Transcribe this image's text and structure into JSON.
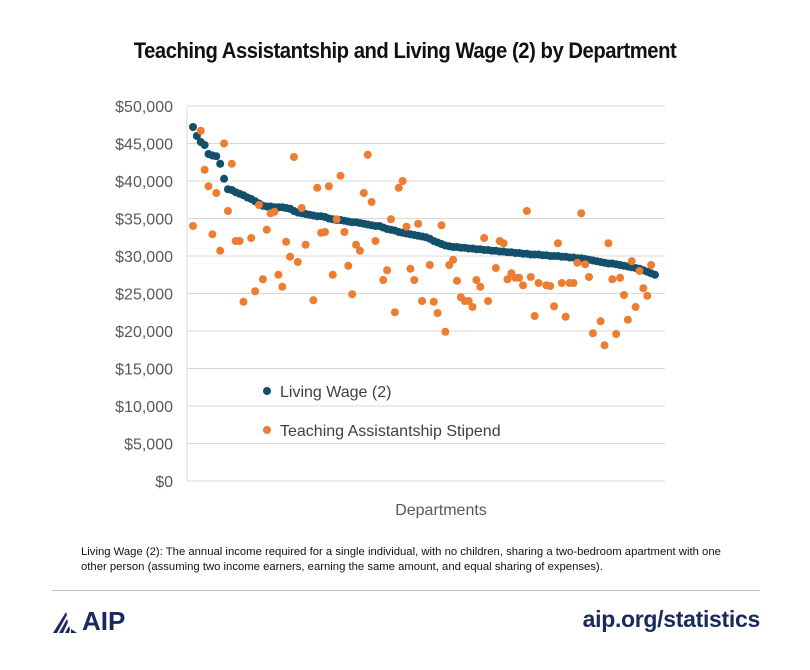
{
  "chart_data": {
    "type": "scatter",
    "title": "Teaching Assistantship and Living Wage (2) by Department",
    "xlabel": "Departments",
    "ylabel": "",
    "ylim": [
      0,
      50000
    ],
    "yticks": [
      "$0",
      "$5,000",
      "$10,000",
      "$15,000",
      "$20,000",
      "$25,000",
      "$30,000",
      "$35,000",
      "$40,000",
      "$45,000",
      "$50,000"
    ],
    "ytick_values": [
      0,
      5000,
      10000,
      15000,
      20000,
      25000,
      30000,
      35000,
      40000,
      45000,
      50000
    ],
    "xlim": [
      0,
      119
    ],
    "grid": true,
    "legend_position": "bottom-left",
    "series": [
      {
        "name": "Living Wage (2)",
        "color": "#13506b",
        "x": [
          0,
          1,
          2,
          3,
          4,
          5,
          6,
          7,
          8,
          9,
          10,
          11,
          12,
          13,
          14,
          15,
          16,
          17,
          18,
          19,
          20,
          21,
          22,
          23,
          24,
          25,
          26,
          27,
          28,
          29,
          30,
          31,
          32,
          33,
          34,
          35,
          36,
          37,
          38,
          39,
          40,
          41,
          42,
          43,
          44,
          45,
          46,
          47,
          48,
          49,
          50,
          51,
          52,
          53,
          54,
          55,
          56,
          57,
          58,
          59,
          60,
          61,
          62,
          63,
          64,
          65,
          66,
          67,
          68,
          69,
          70,
          71,
          72,
          73,
          74,
          75,
          76,
          77,
          78,
          79,
          80,
          81,
          82,
          83,
          84,
          85,
          86,
          87,
          88,
          89,
          90,
          91,
          92,
          93,
          94,
          95,
          96,
          97,
          98,
          99,
          100,
          101,
          102,
          103,
          104,
          105,
          106,
          107,
          108,
          109,
          110,
          111,
          112,
          113,
          114,
          115,
          116,
          117,
          118,
          119
        ],
        "y": [
          47200,
          46000,
          45200,
          44800,
          43600,
          43400,
          43300,
          42300,
          40300,
          38900,
          38800,
          38500,
          38300,
          38100,
          37800,
          37600,
          37300,
          37000,
          36700,
          36600,
          36600,
          36500,
          36500,
          36500,
          36400,
          36300,
          36000,
          35800,
          35700,
          35600,
          35500,
          35400,
          35300,
          35300,
          35200,
          35000,
          34900,
          34800,
          34800,
          34700,
          34600,
          34500,
          34500,
          34400,
          34300,
          34200,
          34100,
          34000,
          34000,
          33800,
          33600,
          33500,
          33400,
          33200,
          33100,
          33000,
          32900,
          32800,
          32700,
          32600,
          32500,
          32300,
          32000,
          31800,
          31600,
          31400,
          31300,
          31200,
          31200,
          31100,
          31100,
          31000,
          31000,
          30900,
          30900,
          30800,
          30800,
          30700,
          30700,
          30600,
          30600,
          30500,
          30500,
          30400,
          30400,
          30300,
          30300,
          30200,
          30200,
          30200,
          30100,
          30100,
          30000,
          30000,
          30000,
          29900,
          29900,
          29800,
          29800,
          29700,
          29700,
          29600,
          29500,
          29400,
          29300,
          29200,
          29100,
          29000,
          29000,
          28900,
          28800,
          28700,
          28600,
          28500,
          28400,
          28300,
          28100,
          27900,
          27700,
          27500
        ]
      },
      {
        "name": "Teaching Assistantship Stipend",
        "color": "#ed7d31",
        "x": [
          0,
          2,
          3,
          4,
          5,
          6,
          7,
          8,
          9,
          10,
          11,
          12,
          13,
          15,
          16,
          17,
          18,
          19,
          20,
          21,
          22,
          23,
          24,
          25,
          26,
          27,
          28,
          29,
          31,
          32,
          33,
          34,
          35,
          36,
          37,
          38,
          39,
          40,
          41,
          42,
          43,
          44,
          45,
          46,
          47,
          49,
          50,
          51,
          52,
          53,
          54,
          55,
          56,
          57,
          58,
          59,
          61,
          62,
          63,
          64,
          65,
          66,
          67,
          68,
          69,
          70,
          71,
          72,
          73,
          74,
          75,
          76,
          78,
          79,
          80,
          81,
          82,
          83,
          84,
          85,
          86,
          87,
          88,
          89,
          91,
          92,
          93,
          94,
          95,
          96,
          97,
          98,
          99,
          100,
          101,
          102,
          103,
          105,
          106,
          107,
          108,
          109,
          110,
          111,
          112,
          113,
          114,
          115,
          116,
          117,
          118
        ],
        "y": [
          34000,
          46700,
          41500,
          39300,
          32900,
          38400,
          30700,
          45000,
          36000,
          42300,
          32000,
          32000,
          23900,
          32400,
          25300,
          36800,
          26900,
          33500,
          35700,
          35900,
          27500,
          25900,
          31900,
          29900,
          43200,
          29200,
          36400,
          31500,
          24100,
          39100,
          33100,
          33200,
          39300,
          27500,
          34900,
          40700,
          33200,
          28700,
          24900,
          31500,
          30700,
          38400,
          43500,
          37200,
          32000,
          26800,
          28100,
          34900,
          22500,
          39100,
          40000,
          33900,
          28300,
          26800,
          34300,
          24000,
          28800,
          23900,
          22400,
          34100,
          19900,
          28800,
          29500,
          26700,
          24500,
          24000,
          24000,
          23200,
          26800,
          25900,
          32400,
          24000,
          28400,
          32000,
          31700,
          26900,
          27700,
          27100,
          27100,
          26100,
          36000,
          27200,
          22000,
          26400,
          26100,
          26000,
          23300,
          31700,
          26400,
          21900,
          26400,
          26400,
          29100,
          35700,
          28900,
          27200,
          19700,
          21300,
          18100,
          31700,
          26900,
          19600,
          27100,
          24800,
          21500,
          29300,
          23200,
          28000,
          25700,
          24700,
          28800
        ]
      }
    ],
    "annotations": [
      "Living Wage (2): The annual income required for a single individual, with no children, sharing a two-bedroom apartment with one other person (assuming two income earners, earning the same amount, and equal sharing of expenses)."
    ]
  },
  "footer": {
    "logo_text": "AIP",
    "site": "aip.org/statistics"
  }
}
